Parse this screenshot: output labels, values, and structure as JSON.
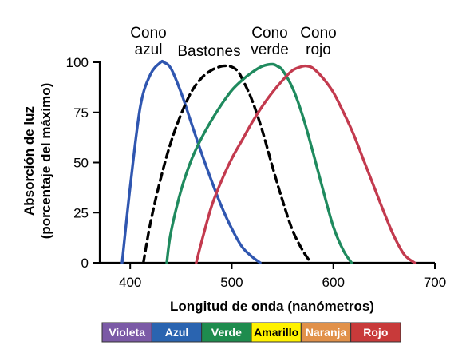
{
  "chart_data": {
    "type": "line",
    "xlabel": "Longitud de onda (nanómetros)",
    "ylabel_lines": [
      "Absorción de luz",
      "(porcentaje del máximo)"
    ],
    "xlim": [
      370,
      700
    ],
    "ylim": [
      0,
      100
    ],
    "xticks": [
      400,
      500,
      600,
      700
    ],
    "yticks": [
      0,
      25,
      50,
      75,
      100
    ],
    "grid": false,
    "series": [
      {
        "name_lines": [
          "Cono",
          "azul"
        ],
        "color": "#2f56b0",
        "dashed": false,
        "x": [
          392,
          400,
          410,
          420,
          430,
          433,
          440,
          450,
          460,
          470,
          480,
          490,
          500,
          510,
          520,
          528
        ],
        "y": [
          0,
          38,
          78,
          94,
          100,
          100,
          97,
          85,
          70,
          55,
          41,
          28,
          17,
          8,
          3,
          0
        ]
      },
      {
        "name_lines": [
          "Bastones"
        ],
        "color": "#000000",
        "dashed": true,
        "x": [
          413,
          420,
          430,
          440,
          450,
          460,
          470,
          480,
          490,
          498,
          505,
          510,
          520,
          530,
          540,
          550,
          560,
          570,
          578
        ],
        "y": [
          0,
          20,
          42,
          60,
          74,
          85,
          92,
          96,
          98,
          98,
          96,
          92,
          81,
          66,
          48,
          31,
          16,
          6,
          0
        ]
      },
      {
        "name_lines": [
          "Cono",
          "verde"
        ],
        "color": "#1f8a5e",
        "dashed": false,
        "x": [
          436,
          440,
          450,
          460,
          470,
          480,
          490,
          500,
          510,
          520,
          530,
          540,
          545,
          550,
          560,
          570,
          580,
          590,
          600,
          610,
          618
        ],
        "y": [
          0,
          15,
          36,
          51,
          62,
          71,
          79,
          86,
          91,
          95,
          98,
          99,
          98,
          96,
          87,
          73,
          55,
          36,
          18,
          6,
          0
        ]
      },
      {
        "name_lines": [
          "Cono",
          "rojo"
        ],
        "color": "#c33a4e",
        "dashed": false,
        "x": [
          465,
          470,
          480,
          490,
          500,
          510,
          520,
          530,
          540,
          550,
          560,
          570,
          575,
          580,
          590,
          600,
          610,
          620,
          630,
          640,
          650,
          660,
          670,
          680
        ],
        "y": [
          0,
          10,
          28,
          41,
          52,
          61,
          70,
          78,
          85,
          91,
          96,
          98,
          98,
          97,
          92,
          85,
          75,
          64,
          51,
          38,
          25,
          13,
          4,
          0
        ]
      }
    ]
  },
  "spectrum_band": [
    {
      "label": "Violeta",
      "fill": "#7b5aa6",
      "text_color": "#ffffff"
    },
    {
      "label": "Azul",
      "fill": "#2a64b0",
      "text_color": "#ffffff"
    },
    {
      "label": "Verde",
      "fill": "#1e8c4e",
      "text_color": "#ffffff"
    },
    {
      "label": "Amarillo",
      "fill": "#fff200",
      "text_color": "#000000"
    },
    {
      "label": "Naranja",
      "fill": "#e1914a",
      "text_color": "#ffffff"
    },
    {
      "label": "Rojo",
      "fill": "#c83a3a",
      "text_color": "#ffffff"
    }
  ]
}
